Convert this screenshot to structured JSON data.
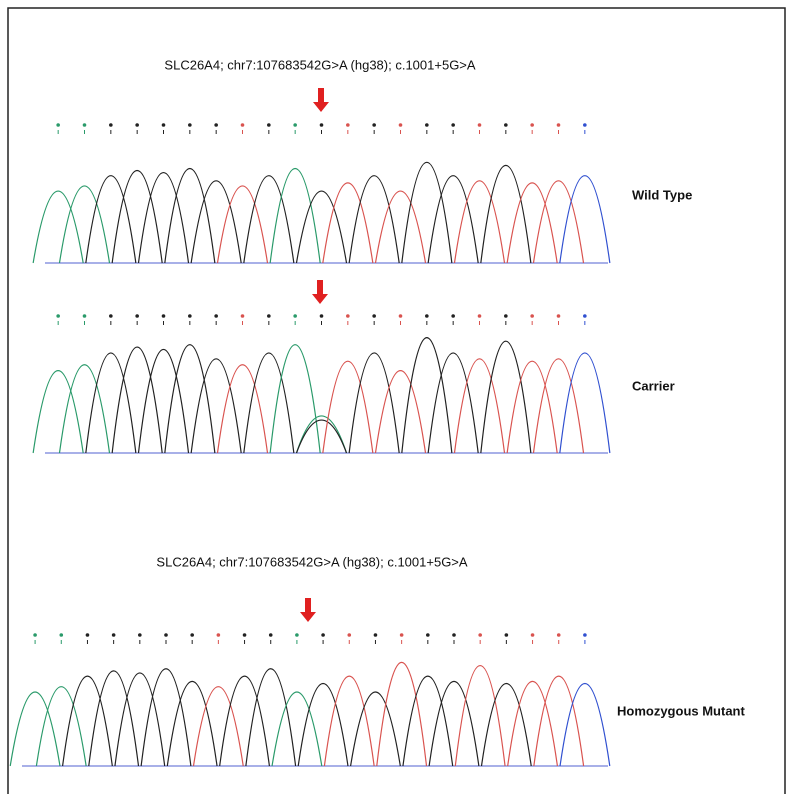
{
  "groups": [
    {
      "title": "SLC26A4; chr7:107683542G>A (hg38); c.1001+5G>A",
      "panels": [
        {
          "label": "Wild Type"
        },
        {
          "label": "Carrier"
        }
      ]
    },
    {
      "title": "SLC26A4; chr7:107683542G>A (hg38); c.1001+5G>A",
      "panels": [
        {
          "label": "Homozygous Mutant"
        }
      ]
    }
  ]
}
